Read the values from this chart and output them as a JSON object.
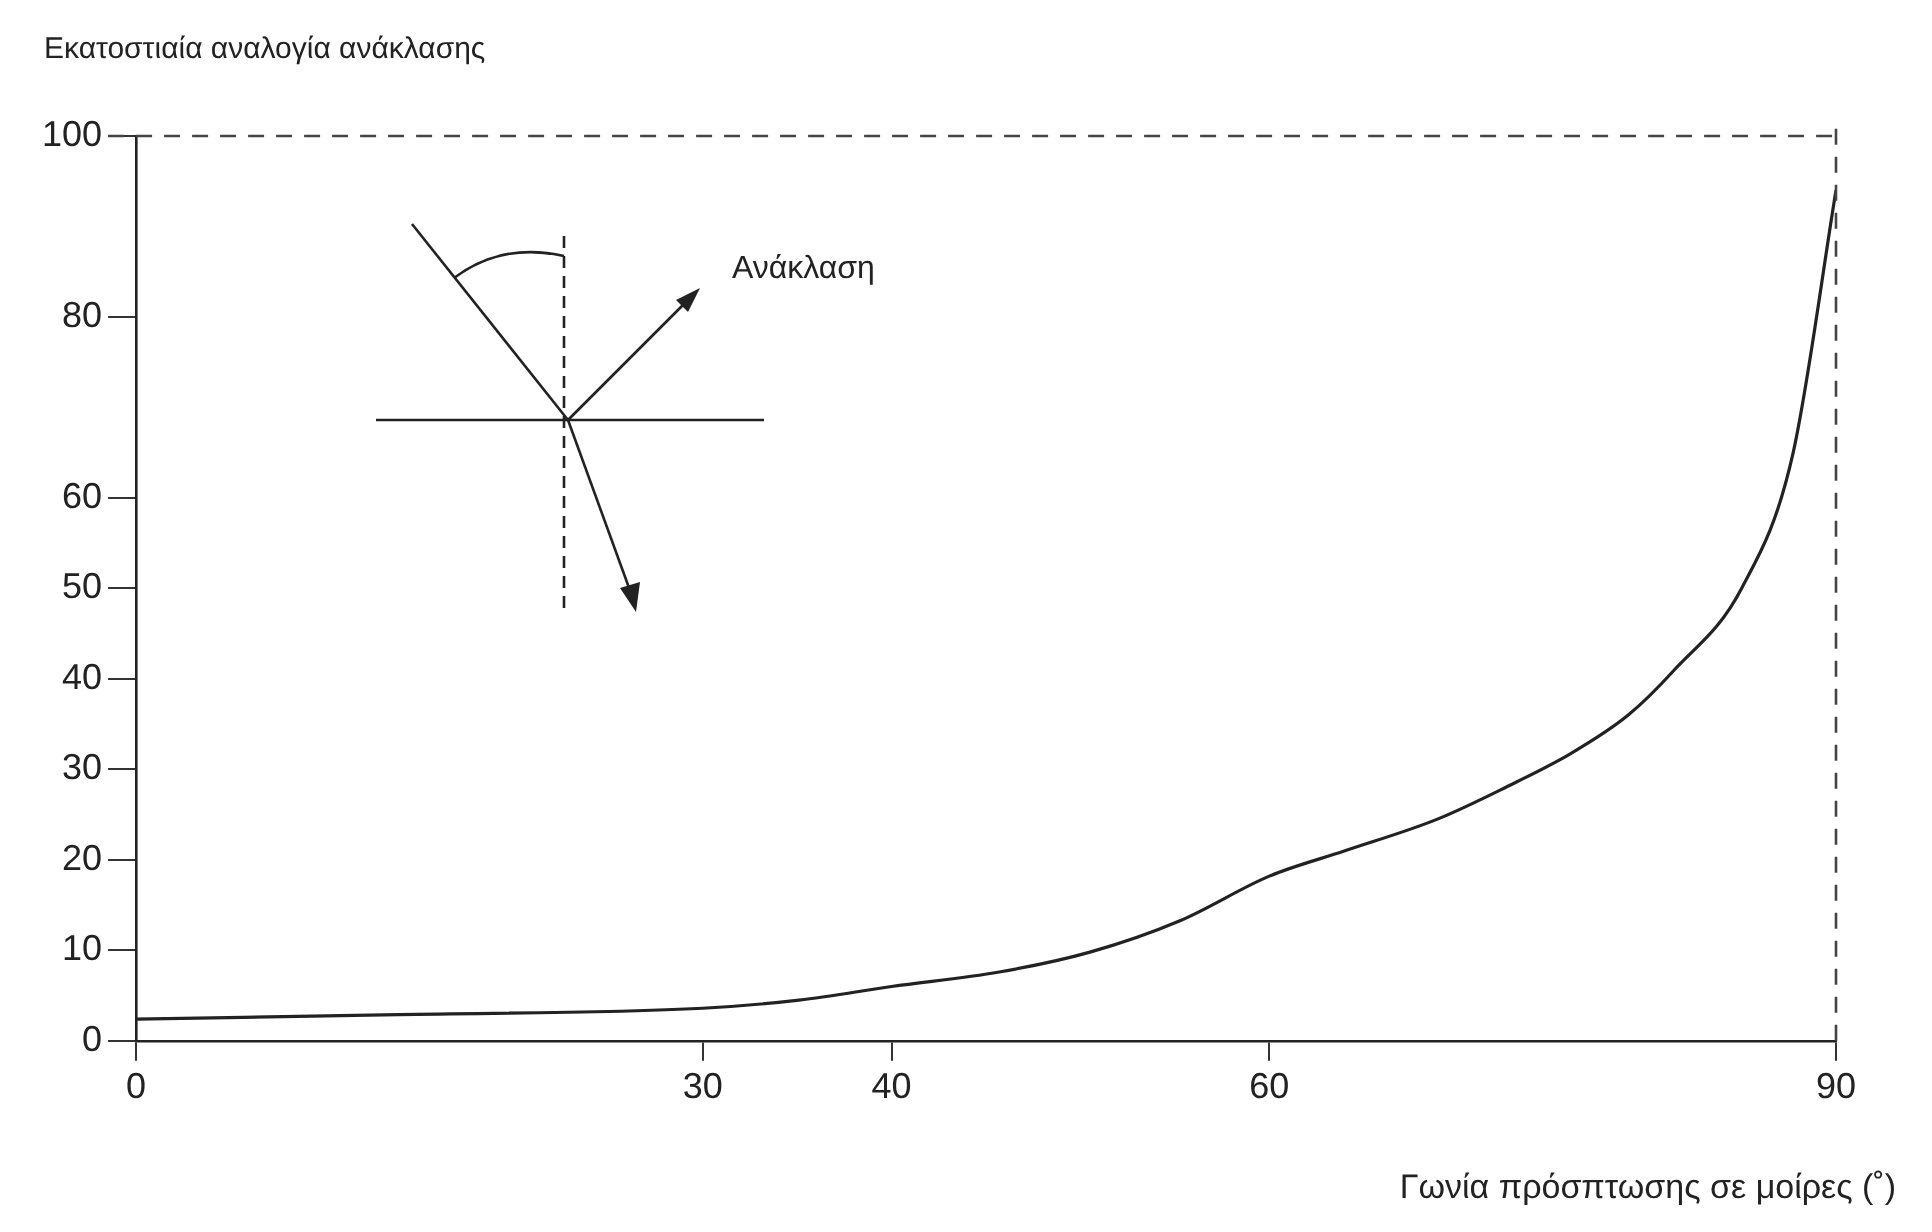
{
  "chart_data": {
    "type": "line",
    "xlabel": "Γωνία πρόσπτωσης σε μοίρες (˚)",
    "ylabel": "Εκατοστιαία αναλογία ανάκλασης",
    "annotations": [
      "Ανάκλαση"
    ],
    "series": [
      {
        "color": "#222222",
        "x": [
          0,
          13.9,
          30,
          35.1,
          40,
          45.7,
          50.5,
          55.3,
          60,
          64,
          68.9,
          72.5,
          76,
          79,
          81.4,
          85,
          87.7,
          90
        ],
        "values": [
          2.4,
          2.9,
          3.6,
          4.5,
          6,
          7.6,
          9.8,
          13.3,
          18.2,
          21,
          24.5,
          28,
          31.8,
          36,
          40.9,
          50,
          64.7,
          94
        ]
      }
    ],
    "xlim": [
      0,
      90
    ],
    "xticks": [
      0,
      30,
      40,
      60,
      90
    ],
    "ylim": [
      0,
      100
    ],
    "yticks": [
      0,
      10,
      20,
      30,
      40,
      50,
      60,
      80,
      100
    ],
    "ref_lines": [
      {
        "axis": "y",
        "value": 100,
        "line_style": "dashed",
        "color": "#444444"
      },
      {
        "axis": "x",
        "value": 90,
        "line_style": "dashed",
        "color": "#444444"
      }
    ],
    "grid": false,
    "legend": false,
    "marker": "none",
    "line_style": "solid"
  }
}
